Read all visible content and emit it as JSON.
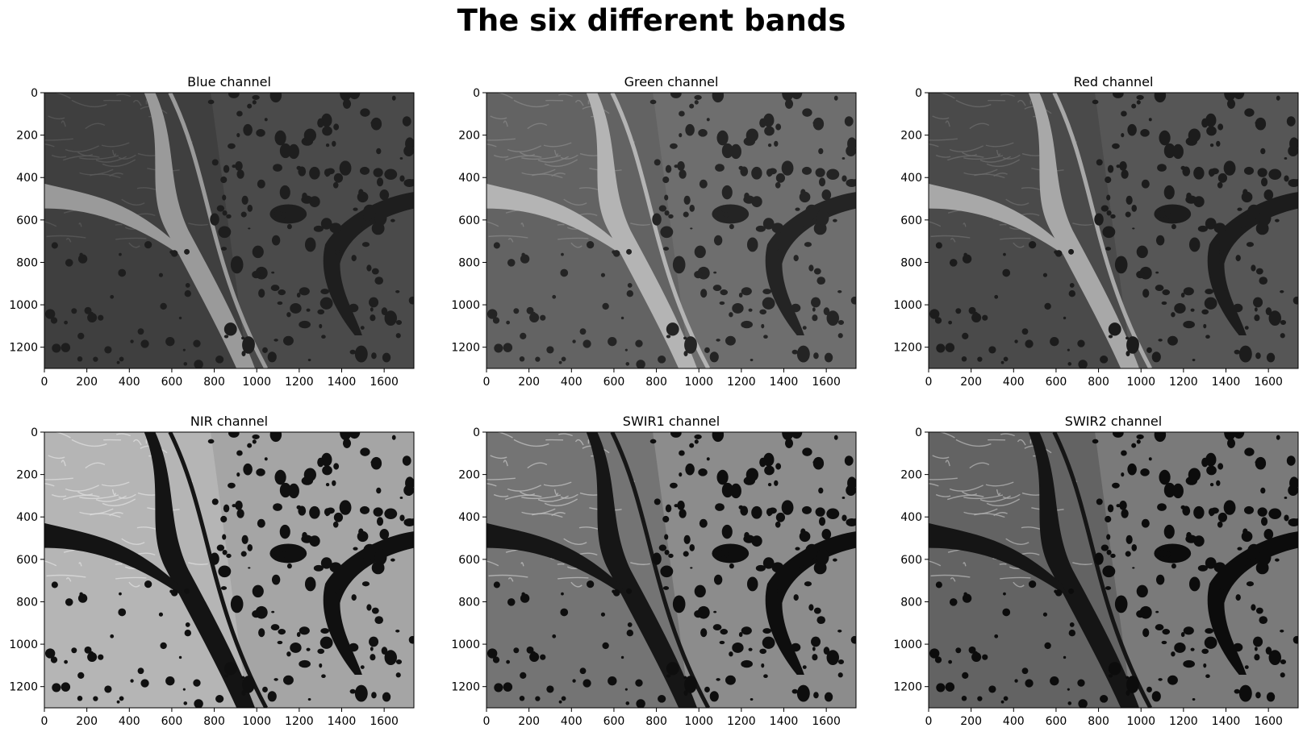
{
  "title": "The six different bands",
  "x_ticks": [
    "0",
    "200",
    "400",
    "600",
    "800",
    "1000",
    "1200",
    "1400",
    "1600"
  ],
  "y_ticks": [
    "0",
    "200",
    "400",
    "600",
    "800",
    "1000",
    "1200"
  ],
  "x_tick_values": [
    0,
    200,
    400,
    600,
    800,
    1000,
    1200,
    1400,
    1600
  ],
  "y_tick_values": [
    0,
    200,
    400,
    600,
    800,
    1000,
    1200
  ],
  "image_extent": {
    "width": 1740,
    "height": 1300
  },
  "panels": [
    {
      "title": "Blue channel",
      "land": "#4a4a4a",
      "land_alt": "#3a3a3a",
      "water": "#1e1e1e",
      "river": "#9a9a9a",
      "texture": "#5a5a5a"
    },
    {
      "title": "Green channel",
      "land": "#6e6e6e",
      "land_alt": "#5e5e5e",
      "water": "#242424",
      "river": "#b4b4b4",
      "texture": "#858585"
    },
    {
      "title": "Red channel",
      "land": "#565656",
      "land_alt": "#464646",
      "water": "#1c1c1c",
      "river": "#a8a8a8",
      "texture": "#6a6a6a"
    },
    {
      "title": "NIR channel",
      "land": "#a5a5a5",
      "land_alt": "#bcbcbc",
      "water": "#101010",
      "river": "#141414",
      "texture": "#dcdcdc"
    },
    {
      "title": "SWIR1 channel",
      "land": "#8c8c8c",
      "land_alt": "#6a6a6a",
      "water": "#0e0e0e",
      "river": "#161616",
      "texture": "#bdbdbd"
    },
    {
      "title": "SWIR2 channel",
      "land": "#7a7a7a",
      "land_alt": "#5a5a5a",
      "water": "#0c0c0c",
      "river": "#151515",
      "texture": "#b0b0b0"
    }
  ]
}
